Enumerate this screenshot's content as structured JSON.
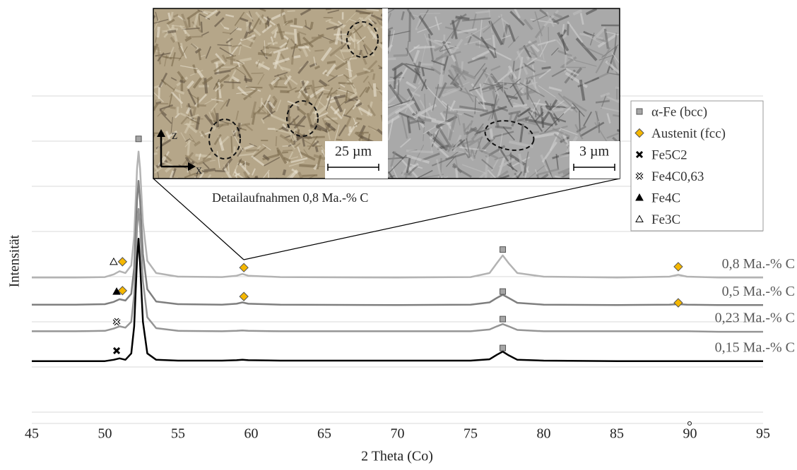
{
  "chart_data": {
    "type": "line",
    "x_label": "2 Theta (Co)",
    "y_label": "Intensität",
    "annotation": "°",
    "xlim": [
      45,
      95
    ],
    "xticks": [
      45,
      50,
      55,
      60,
      65,
      70,
      75,
      80,
      85,
      90,
      95
    ],
    "ylim": [
      -0.25,
      7
    ],
    "yticks": [
      0,
      1,
      2,
      3,
      4,
      5,
      6,
      7
    ],
    "grid": true,
    "x": [
      45,
      48,
      50,
      50.6,
      51,
      51.4,
      51.8,
      52.0,
      52.2,
      52.3,
      52.4,
      52.6,
      52.9,
      53.5,
      55,
      58,
      59,
      59.4,
      59.8,
      62,
      70,
      75,
      76.3,
      76.8,
      77.2,
      77.6,
      78.2,
      80,
      85,
      88.6,
      89.2,
      89.8,
      92,
      95
    ],
    "series": [
      {
        "name": "0,8 Ma.-% C",
        "color": "#b3b3b3",
        "values": [
          2.98,
          2.98,
          2.99,
          3.05,
          3.12,
          3.08,
          3.25,
          3.9,
          5.4,
          5.77,
          5.4,
          4.2,
          3.35,
          3.08,
          3.0,
          2.99,
          3.02,
          3.06,
          3.02,
          2.99,
          2.98,
          2.99,
          3.08,
          3.3,
          3.47,
          3.3,
          3.08,
          3.0,
          2.98,
          3.0,
          3.04,
          3.0,
          2.98,
          2.98
        ]
      },
      {
        "name": "0,5 Ma.-% C",
        "color": "#7f7f7f",
        "values": [
          2.38,
          2.38,
          2.39,
          2.44,
          2.5,
          2.47,
          2.62,
          3.2,
          4.7,
          5.12,
          4.7,
          3.5,
          2.72,
          2.45,
          2.39,
          2.38,
          2.4,
          2.43,
          2.4,
          2.38,
          2.37,
          2.38,
          2.43,
          2.53,
          2.6,
          2.53,
          2.42,
          2.38,
          2.37,
          2.38,
          2.39,
          2.38,
          2.37,
          2.37
        ]
      },
      {
        "name": "0,23 Ma.-% C",
        "color": "#959595",
        "values": [
          1.79,
          1.79,
          1.8,
          1.85,
          1.9,
          1.87,
          2.0,
          2.6,
          4.1,
          4.5,
          4.1,
          2.9,
          2.1,
          1.86,
          1.8,
          1.79,
          1.8,
          1.81,
          1.8,
          1.79,
          1.79,
          1.79,
          1.83,
          1.9,
          1.95,
          1.9,
          1.82,
          1.79,
          1.79,
          1.79,
          1.79,
          1.79,
          1.78,
          1.78
        ]
      },
      {
        "name": "0,15 Ma.-% C",
        "color": "#000000",
        "values": [
          1.13,
          1.13,
          1.13,
          1.16,
          1.19,
          1.16,
          1.3,
          1.9,
          3.4,
          3.84,
          3.3,
          2.0,
          1.3,
          1.16,
          1.14,
          1.14,
          1.15,
          1.16,
          1.15,
          1.14,
          1.14,
          1.14,
          1.17,
          1.27,
          1.34,
          1.26,
          1.16,
          1.14,
          1.13,
          1.13,
          1.13,
          1.13,
          1.13,
          1.13
        ]
      }
    ],
    "phases": [
      {
        "name": "α-Fe (bcc)",
        "marker": "square",
        "color": "#a6a6a6",
        "x": [
          52.3,
          77.2,
          77.2,
          77.2,
          77.2
        ],
        "y": [
          6.05,
          3.6,
          2.67,
          2.06,
          1.42
        ]
      },
      {
        "name": "Austenit (fcc)",
        "marker": "diamond",
        "color": "#f5b700",
        "x": [
          51.2,
          59.5,
          89.2,
          51.2,
          59.5,
          89.2
        ],
        "y": [
          3.33,
          3.2,
          3.22,
          2.69,
          2.56,
          2.42
        ]
      },
      {
        "name": "Fe5C2",
        "marker": "x",
        "color": "#000000",
        "x": [
          50.8
        ],
        "y": [
          1.36
        ]
      },
      {
        "name": "Fe4C0,63",
        "marker": "x-outline",
        "color": "#000000",
        "x": [
          50.8
        ],
        "y": [
          2.0
        ]
      },
      {
        "name": "Fe4C",
        "marker": "triangle",
        "color": "#000000",
        "x": [
          50.8
        ],
        "y": [
          2.67
        ]
      },
      {
        "name": "Fe3C",
        "marker": "triangle-open",
        "color": "#000000",
        "x": [
          50.6
        ],
        "y": [
          3.33
        ]
      }
    ],
    "inset": {
      "caption": "Detailaufnahmen 0,8 Ma.-% C",
      "scale_bars": [
        "25 µm",
        "3 µm"
      ],
      "axes": [
        "z",
        "x"
      ]
    }
  }
}
